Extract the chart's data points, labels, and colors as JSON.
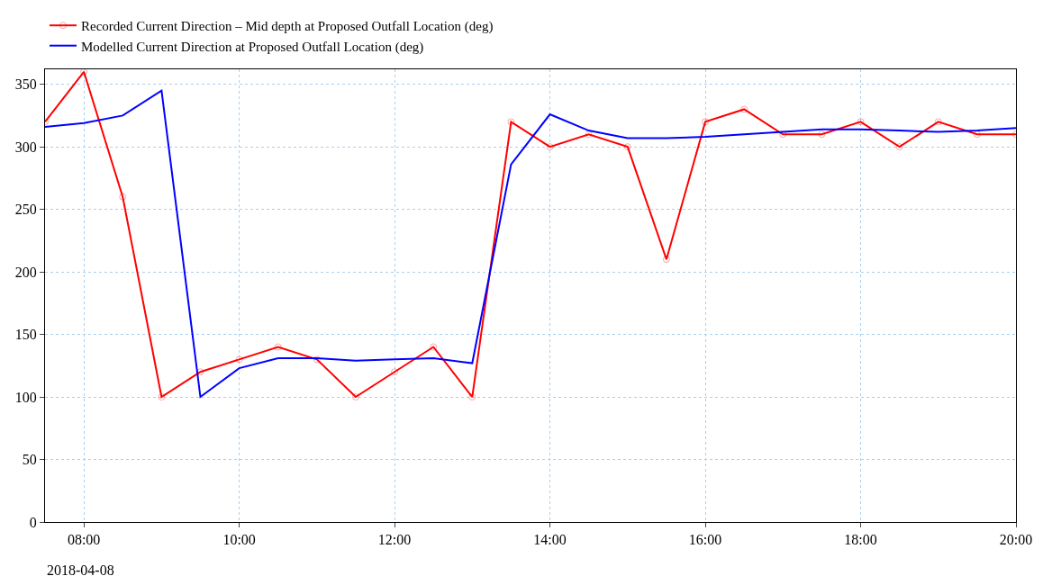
{
  "chart_data": {
    "type": "line",
    "x": [
      "2018-04-08T07:30",
      "2018-04-08T08:00",
      "2018-04-08T08:30",
      "2018-04-08T09:00",
      "2018-04-08T09:30",
      "2018-04-08T10:00",
      "2018-04-08T10:30",
      "2018-04-08T11:00",
      "2018-04-08T11:30",
      "2018-04-08T12:00",
      "2018-04-08T12:30",
      "2018-04-08T13:00",
      "2018-04-08T13:30",
      "2018-04-08T14:00",
      "2018-04-08T14:30",
      "2018-04-08T15:00",
      "2018-04-08T15:30",
      "2018-04-08T16:00",
      "2018-04-08T16:30",
      "2018-04-08T17:00",
      "2018-04-08T17:30",
      "2018-04-08T18:00",
      "2018-04-08T18:30",
      "2018-04-08T19:00",
      "2018-04-08T19:30",
      "2018-04-08T20:00"
    ],
    "series": [
      {
        "name": "Recorded Current Direction – Mid depth at Proposed Outfall Location (deg)",
        "color": "#ff0000",
        "marker": "circle",
        "values": [
          320,
          360,
          260,
          100,
          120,
          130,
          140,
          130,
          100,
          120,
          140,
          100,
          320,
          300,
          310,
          300,
          210,
          320,
          330,
          310,
          310,
          320,
          300,
          320,
          310,
          310
        ]
      },
      {
        "name": "Modelled Current Direction at Proposed Outfall Location (deg)",
        "color": "#0000ff",
        "marker": "none",
        "values": [
          316,
          319,
          325,
          345,
          100,
          123,
          131,
          131,
          129,
          130,
          131,
          127,
          286,
          326,
          313,
          307,
          307,
          308,
          310,
          312,
          314,
          314,
          313,
          312,
          313,
          315
        ]
      }
    ],
    "xlim": [
      "2018-04-08T07:30",
      "2018-04-08T20:00"
    ],
    "xticks": [
      {
        "value": "2018-04-08T08:00",
        "label": "08:00"
      },
      {
        "value": "2018-04-08T10:00",
        "label": "10:00"
      },
      {
        "value": "2018-04-08T12:00",
        "label": "12:00"
      },
      {
        "value": "2018-04-08T14:00",
        "label": "14:00"
      },
      {
        "value": "2018-04-08T16:00",
        "label": "16:00"
      },
      {
        "value": "2018-04-08T18:00",
        "label": "18:00"
      },
      {
        "value": "2018-04-08T20:00",
        "label": "20:00"
      }
    ],
    "ylim": [
      0,
      362
    ],
    "yticks": [
      0,
      50,
      100,
      150,
      200,
      250,
      300,
      350
    ],
    "annotations": [
      "2018-04-08"
    ],
    "grid": true,
    "legend": "top left"
  }
}
